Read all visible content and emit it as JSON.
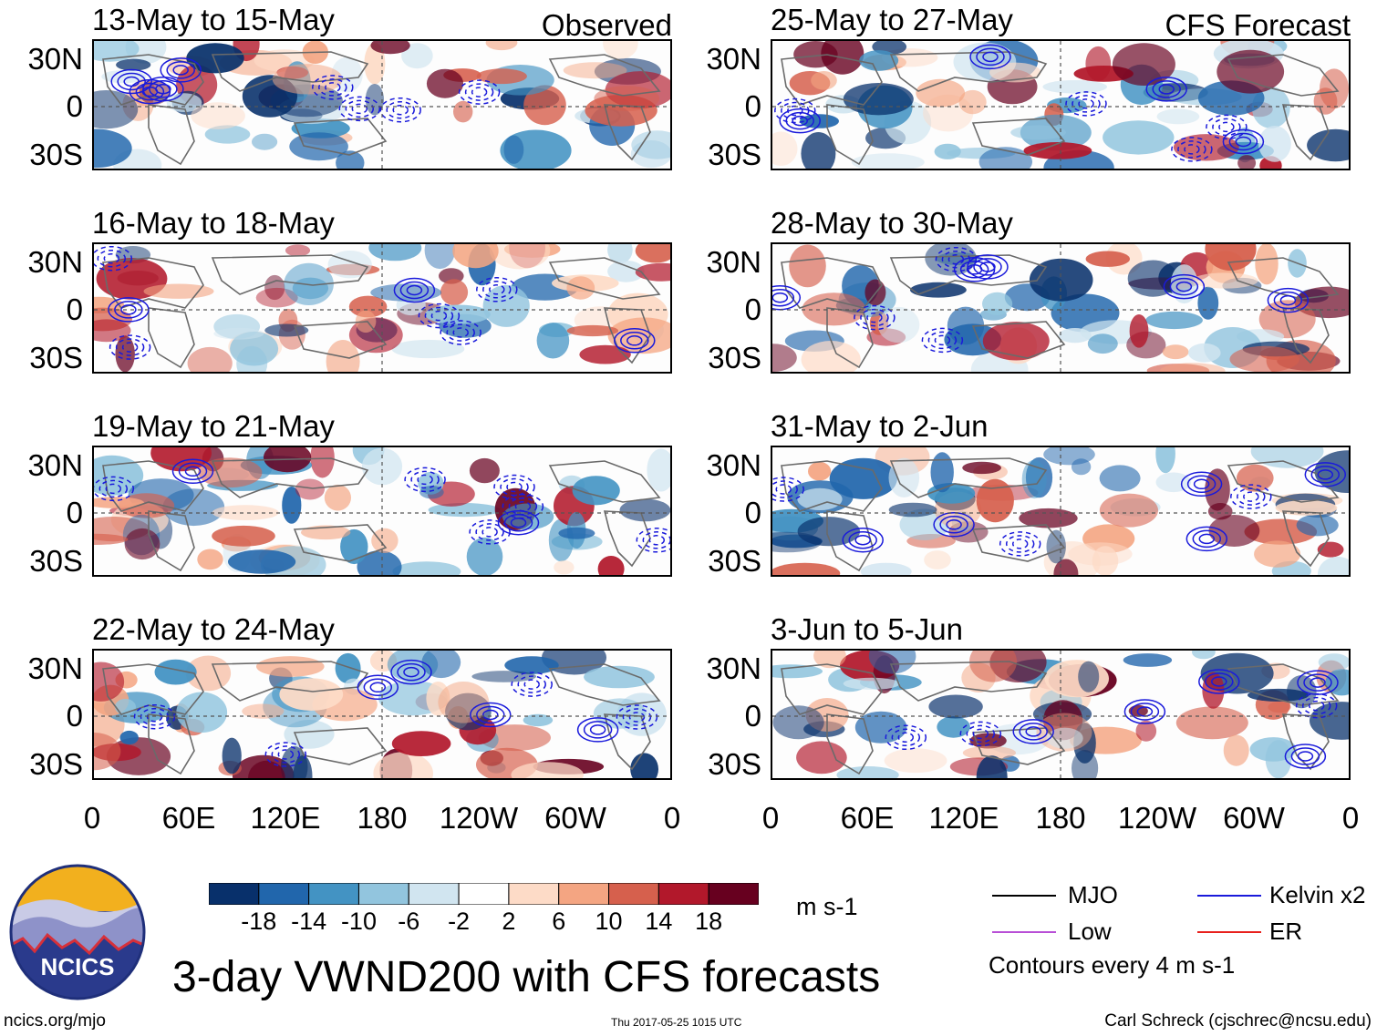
{
  "panels": [
    {
      "title": "13-May to 15-May",
      "tag": "Observed"
    },
    {
      "title": "25-May to 27-May",
      "tag": "CFS Forecast"
    },
    {
      "title": "16-May to 18-May",
      "tag": ""
    },
    {
      "title": "28-May to 30-May",
      "tag": ""
    },
    {
      "title": "19-May to 21-May",
      "tag": ""
    },
    {
      "title": "31-May to 2-Jun",
      "tag": ""
    },
    {
      "title": "22-May to 24-May",
      "tag": ""
    },
    {
      "title": "3-Jun to 5-Jun",
      "tag": ""
    }
  ],
  "lat_labels": [
    "30N",
    "0",
    "30S"
  ],
  "lon_labels": [
    "0",
    "60E",
    "120E",
    "180",
    "120W",
    "60W",
    "0"
  ],
  "colorbar": {
    "ticks": [
      "-18",
      "-14",
      "-10",
      "-6",
      "-2",
      "2",
      "6",
      "10",
      "14",
      "18"
    ],
    "colors": [
      "#08306b",
      "#2166ac",
      "#4393c3",
      "#92c5de",
      "#d1e5f0",
      "#ffffff",
      "#fddbc7",
      "#f4a582",
      "#d6604d",
      "#b2182b",
      "#67001f"
    ],
    "units": "m s-1"
  },
  "legend": {
    "items": [
      {
        "label": "MJO",
        "color": "#000000"
      },
      {
        "label": "Kelvin x2",
        "color": "#1a1adb"
      },
      {
        "label": "Low",
        "color": "#b84fd6"
      },
      {
        "label": "ER",
        "color": "#e8201c"
      }
    ],
    "contour_note": "Contours every 4 m s-1"
  },
  "title": "3-day VWND200 with CFS forecasts",
  "logo_text": "NCICS",
  "footer": {
    "url": "ncics.org/mjo",
    "timestamp": "Thu 2017-05-25 1015 UTC",
    "author": "Carl Schreck (cjschrec@ncsu.edu)"
  }
}
